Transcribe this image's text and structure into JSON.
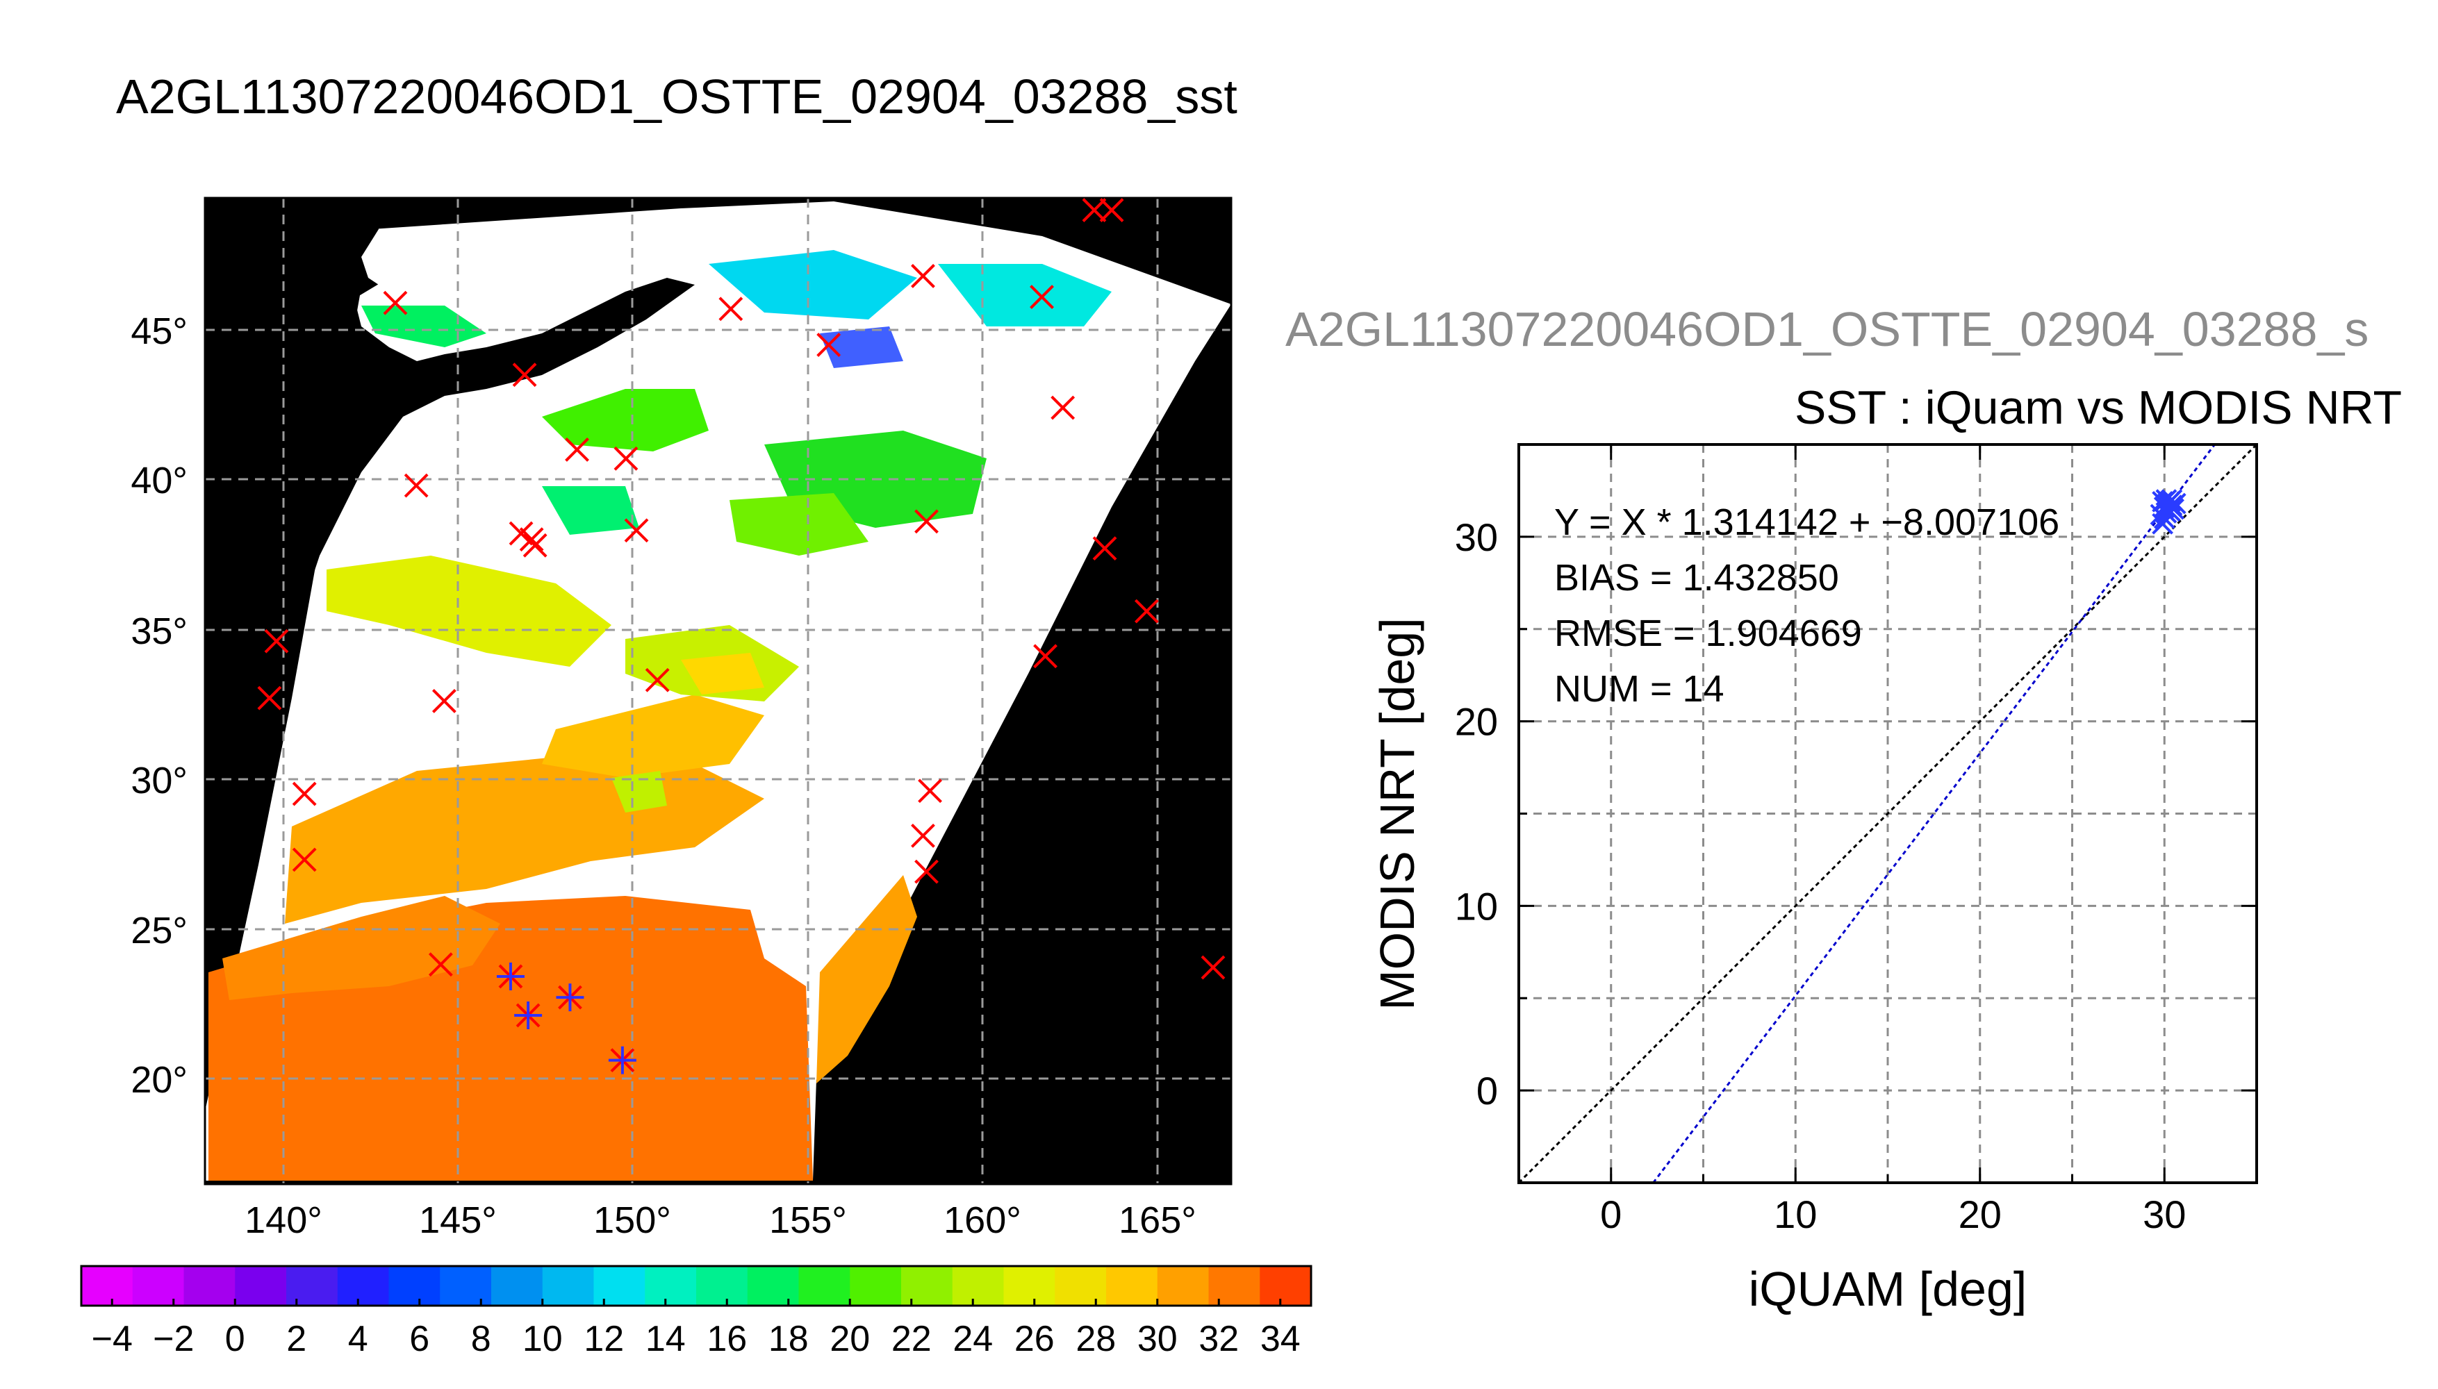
{
  "map": {
    "title": "A2GL11307220046OD1_OSTTE_02904_03288_sst",
    "lat_labels": [
      "45°",
      "40°",
      "35°",
      "30°",
      "25°",
      "20°"
    ],
    "lon_labels": [
      "140°",
      "145°",
      "150°",
      "155°",
      "160°",
      "165°"
    ],
    "colorbar": {
      "ticks": [
        "−4",
        "−2",
        "0",
        "2",
        "4",
        "6",
        "8",
        "10",
        "12",
        "14",
        "16",
        "18",
        "20",
        "22",
        "24",
        "26",
        "28",
        "30",
        "32",
        "34"
      ],
      "range": [
        -5,
        35
      ],
      "colors": [
        "#e600ff",
        "#cc00ff",
        "#a400ee",
        "#7a00ee",
        "#4a1cf0",
        "#2020ff",
        "#0040ff",
        "#0060ff",
        "#0090f0",
        "#00b8f0",
        "#00dff0",
        "#00f0c0",
        "#00f090",
        "#00f060",
        "#20f020",
        "#50f000",
        "#90f000",
        "#c0f000",
        "#e0f000",
        "#f0e000",
        "#ffc800",
        "#ffa000",
        "#ff7800",
        "#ff4000"
      ]
    },
    "markers": {
      "red_x": [
        [
          139.8,
          34.6
        ],
        [
          139.6,
          32.7
        ],
        [
          140.6,
          29.5
        ],
        [
          140.6,
          27.3
        ],
        [
          143.2,
          45.9
        ],
        [
          143.8,
          39.8
        ],
        [
          144.6,
          32.6
        ],
        [
          144.5,
          23.8
        ],
        [
          146.9,
          43.5
        ],
        [
          146.8,
          38.2
        ],
        [
          147.1,
          38.0
        ],
        [
          147.2,
          37.8
        ],
        [
          148.4,
          41.0
        ],
        [
          149.8,
          40.7
        ],
        [
          150.1,
          38.3
        ],
        [
          150.7,
          33.3
        ],
        [
          152.8,
          45.7
        ],
        [
          155.6,
          44.5
        ],
        [
          158.3,
          46.8
        ],
        [
          158.4,
          38.6
        ],
        [
          158.5,
          29.6
        ],
        [
          158.3,
          28.1
        ],
        [
          158.4,
          26.9
        ],
        [
          161.7,
          46.1
        ],
        [
          162.3,
          42.4
        ],
        [
          161.8,
          34.1
        ],
        [
          163.2,
          49.0
        ],
        [
          163.7,
          49.0
        ],
        [
          163.5,
          37.7
        ],
        [
          164.7,
          35.6
        ],
        [
          166.6,
          23.7
        ]
      ],
      "blue_star": [
        [
          146.5,
          23.4
        ],
        [
          147.0,
          22.1
        ],
        [
          148.2,
          22.7
        ],
        [
          149.7,
          20.6
        ]
      ]
    }
  },
  "scatter": {
    "overlay_title": "A2GL11307220046OD1_OSTTE_02904_03288_s",
    "title": "SST : iQuam vs MODIS NRT",
    "xlabel": "iQUAM [deg]",
    "ylabel": "MODIS NRT [deg]",
    "xticks": [
      "0",
      "10",
      "20",
      "30"
    ],
    "yticks": [
      "0",
      "10",
      "20",
      "30"
    ],
    "stats": {
      "fit": "Y = X * 1.314142 + −8.007106",
      "bias": "BIAS = 1.432850",
      "rmse": "RMSE = 1.904669",
      "num": "NUM = 14"
    }
  },
  "chart_data": [
    {
      "type": "heatmap",
      "title": "A2GL11307220046OD1_OSTTE_02904_03288_sst",
      "xlabel": "",
      "ylabel": "",
      "xlim": [
        138,
        167
      ],
      "ylim": [
        16.5,
        49.5
      ],
      "x_ticks": [
        140,
        145,
        150,
        155,
        160,
        165
      ],
      "y_ticks": [
        20,
        25,
        30,
        35,
        40,
        45
      ],
      "colorbar_range": [
        -5,
        35
      ],
      "grid": true,
      "description_values": "SST field: ~28-32 south of 27N, ~22-26 around 30-35N, ~14-20 around 38-46N"
    },
    {
      "type": "scatter",
      "title": "SST : iQuam vs MODIS NRT",
      "xlabel": "iQUAM [deg]",
      "ylabel": "MODIS NRT [deg]",
      "xlim": [
        -5,
        35
      ],
      "ylim": [
        -5,
        35
      ],
      "grid": true,
      "points": [
        [
          29.9,
          30.7
        ],
        [
          30.0,
          31.0
        ],
        [
          30.1,
          31.3
        ],
        [
          30.0,
          31.6
        ],
        [
          30.2,
          31.8
        ],
        [
          30.3,
          31.9
        ],
        [
          30.4,
          31.7
        ],
        [
          30.5,
          31.5
        ],
        [
          29.8,
          31.2
        ],
        [
          30.6,
          31.8
        ],
        [
          30.1,
          32.0
        ],
        [
          30.3,
          31.4
        ],
        [
          29.9,
          31.9
        ],
        [
          30.4,
          32.0
        ]
      ],
      "lines": [
        {
          "slope": 1.0,
          "intercept": 0.0,
          "color": "#000000",
          "style": "dotted"
        },
        {
          "slope": 1.314142,
          "intercept": -8.007106,
          "color": "#0000cc",
          "style": "dotted"
        }
      ],
      "stats": {
        "bias": 1.43285,
        "rmse": 1.904669,
        "num": 14
      }
    }
  ]
}
